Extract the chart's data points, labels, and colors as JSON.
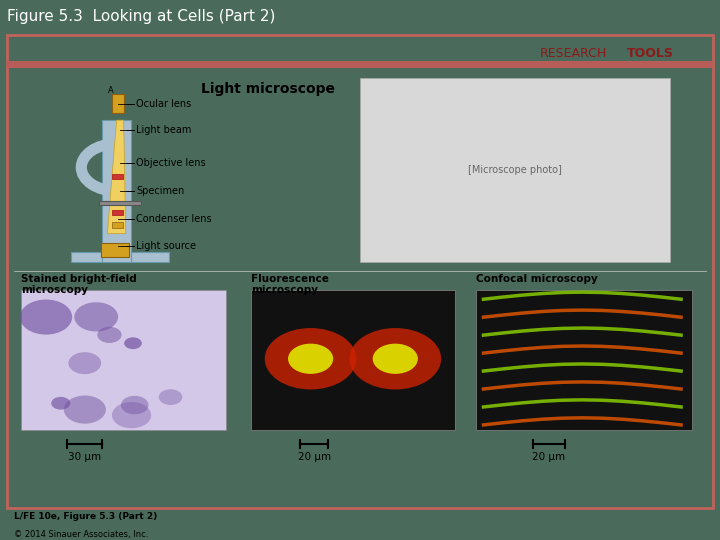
{
  "title": "Figure 5.3  Looking at Cells (Part 2)",
  "title_bg_color": "#4a6b5b",
  "title_text_color": "#ffffff",
  "title_fontsize": 11,
  "main_bg_color": "#ffffff",
  "border_color": "#c0635a",
  "inner_bg": "#f5f0ef",
  "header_stripe_color": "#b85c58",
  "light_microscope_title": "Light microscope",
  "section1_title": "Stained bright-field\nmicroscopy",
  "section2_title": "Fluorescence\nmicroscopy",
  "section3_title": "Confocal microscopy",
  "scale1": "30 μm",
  "scale2": "20 μm",
  "scale3": "20 μm",
  "footer_line1": "L/FE 10e, Figure 5.3 (Part 2)",
  "footer_line2": "© 2014 Sinauer Associates, Inc."
}
